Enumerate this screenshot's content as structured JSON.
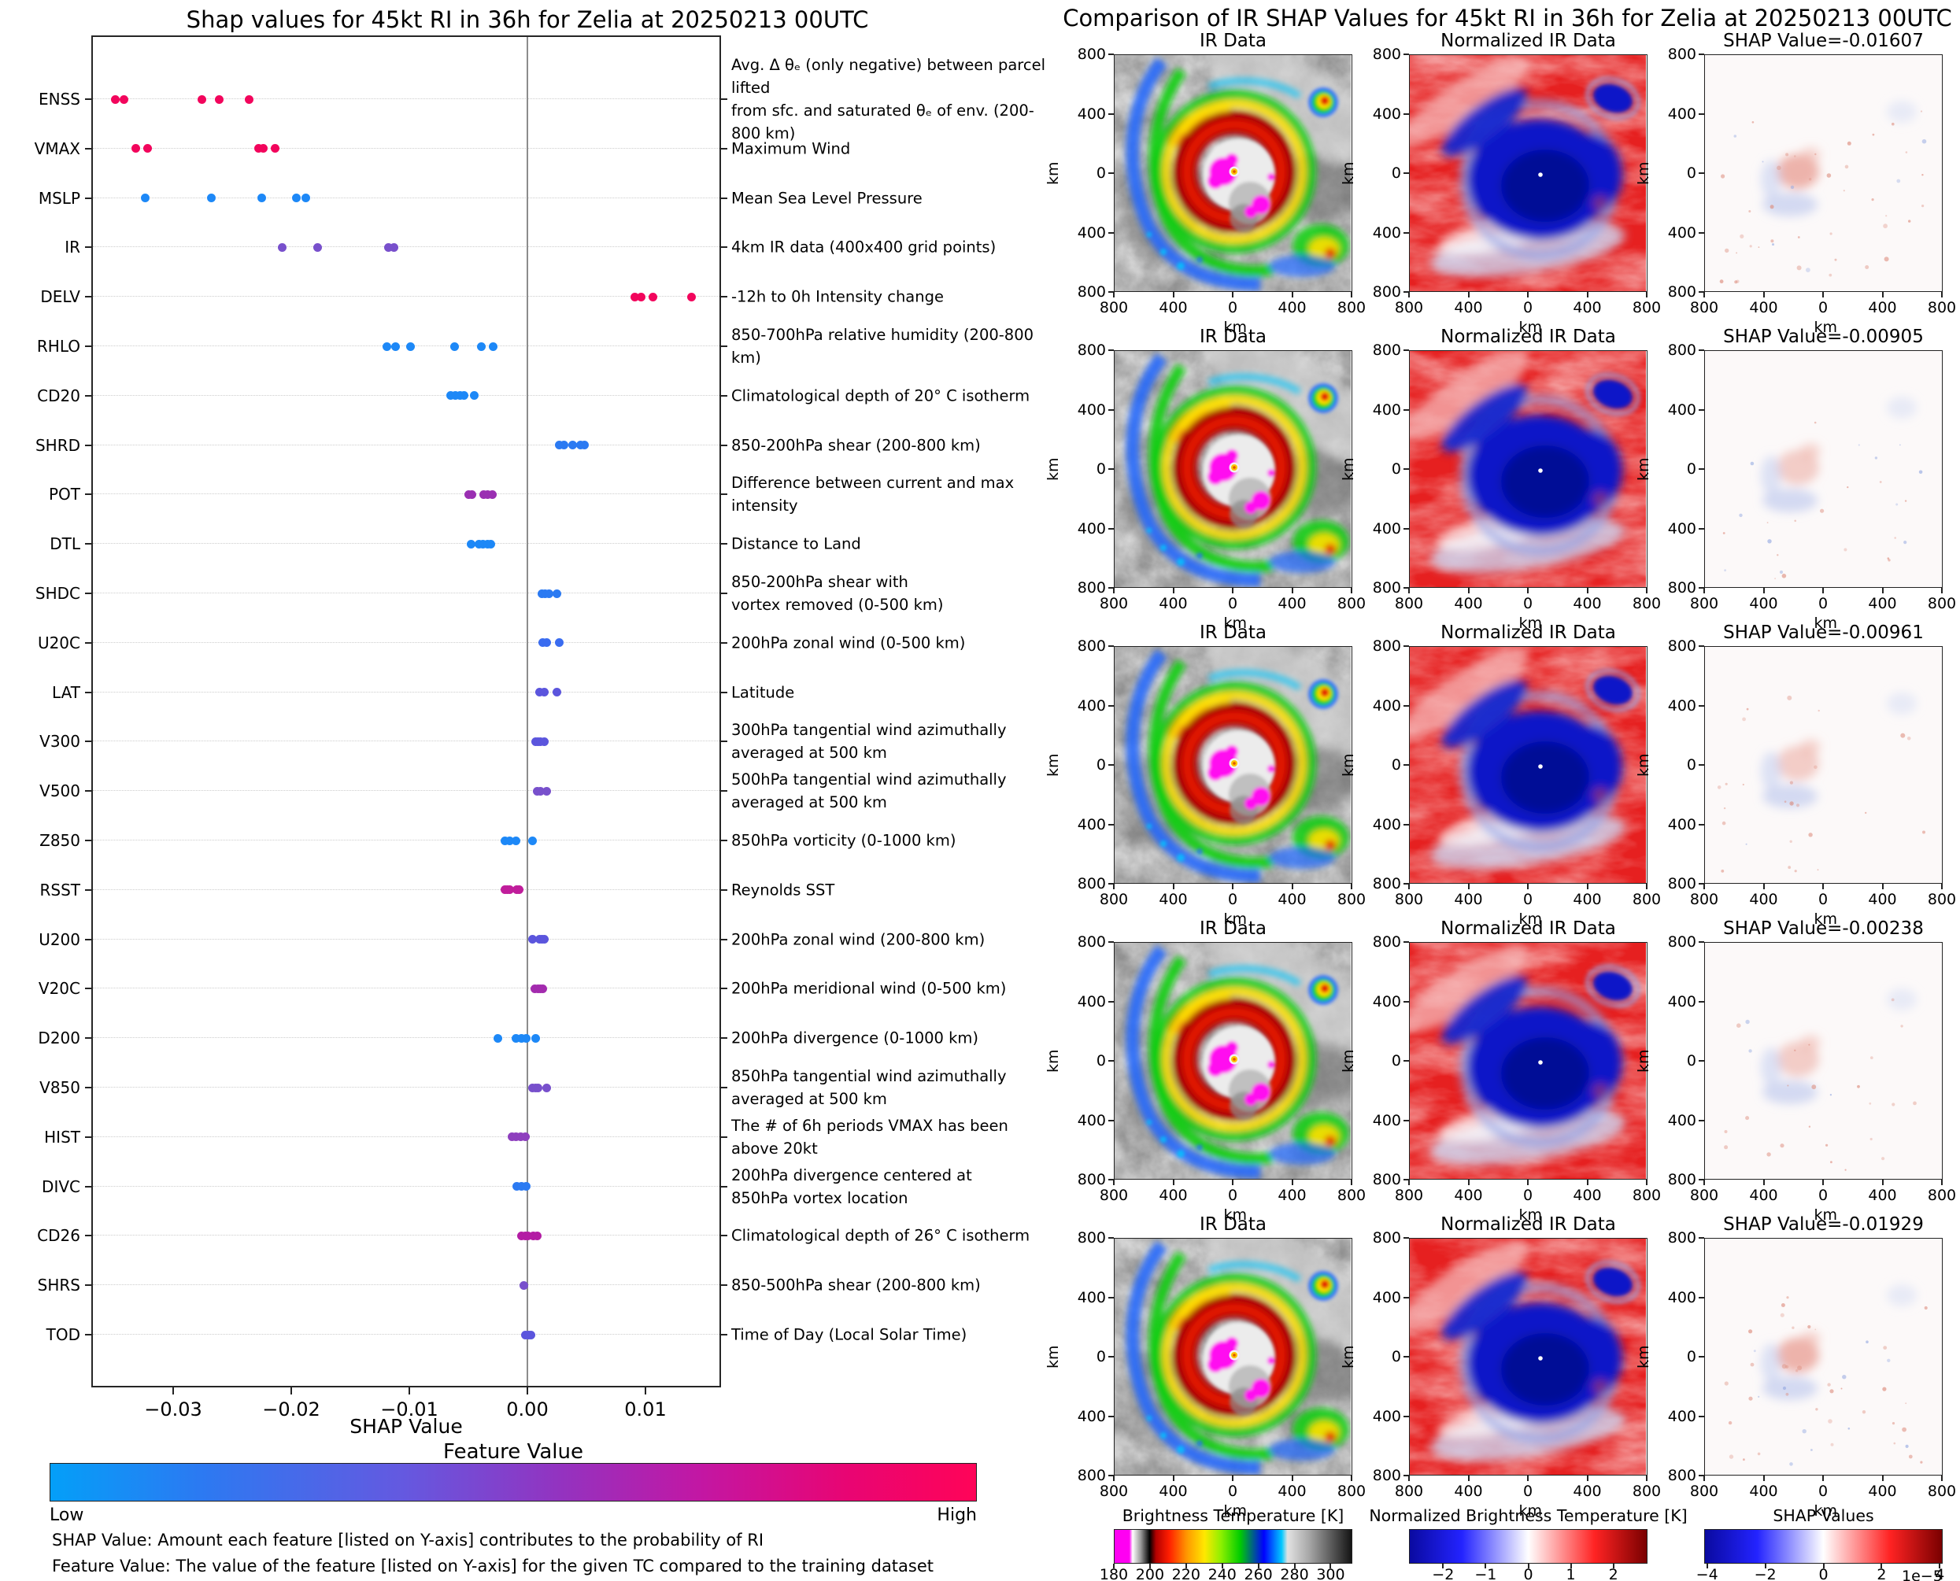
{
  "chart_data": [
    {
      "type": "scatter",
      "subtype": "shap-beeswarm",
      "title": "Shap values for 45kt RI in 36h for Zelia at 20250213 00UTC",
      "xlabel": "SHAP Value",
      "xlim": [
        -0.037,
        0.0165
      ],
      "x_ticks": [
        "−0.03",
        "−0.02",
        "−0.01",
        "0.00",
        "0.01"
      ],
      "x_tick_values": [
        -0.03,
        -0.02,
        -0.01,
        0.0,
        0.01
      ],
      "grid": true,
      "colorbar": {
        "title": "Feature Value",
        "low_label": "Low",
        "high_label": "High",
        "left_color": "#049ff8",
        "right_color": "#ff0458"
      },
      "footnotes": [
        "SHAP Value: Amount each feature [listed on Y-axis] contributes to the probability of RI",
        "Feature Value: The value of the feature [listed on Y-axis] for the given TC compared to the training dataset"
      ],
      "features": [
        {
          "name": "ENSS",
          "desc": "Avg. Δ θₑ (only negative) between parcel lifted\nfrom sfc. and saturated θₑ of env. (200-800 km)",
          "color": "#f2055c",
          "values": [
            -0.0349,
            -0.0342,
            -0.0276,
            -0.0261,
            -0.0236
          ]
        },
        {
          "name": "VMAX",
          "desc": "Maximum Wind",
          "color": "#f2055c",
          "values": [
            -0.0332,
            -0.0322,
            -0.0228,
            -0.0224,
            -0.0214
          ]
        },
        {
          "name": "MSLP",
          "desc": "Mean Sea Level Pressure",
          "color": "#1d88f7",
          "values": [
            -0.0324,
            -0.0268,
            -0.0225,
            -0.0196,
            -0.0188
          ]
        },
        {
          "name": "IR",
          "desc": "4km IR data (400x400 grid points)",
          "color": "#7850cc",
          "values": [
            -0.0208,
            -0.0178,
            -0.0118,
            -0.0113
          ]
        },
        {
          "name": "DELV",
          "desc": "-12h to 0h Intensity change",
          "color": "#f2055c",
          "values": [
            0.0091,
            0.0096,
            0.0106,
            0.0139
          ]
        },
        {
          "name": "RHLO",
          "desc": "850-700hPa relative humidity (200-800 km)",
          "color": "#1d88f7",
          "values": [
            -0.0119,
            -0.0112,
            -0.0099,
            -0.0062,
            -0.0039,
            -0.0029
          ]
        },
        {
          "name": "CD20",
          "desc": "Climatological depth of 20° C isotherm",
          "color": "#1d88f7",
          "values": [
            -0.0065,
            -0.0061,
            -0.0057,
            -0.0054,
            -0.0045
          ]
        },
        {
          "name": "SHRD",
          "desc": "850-200hPa shear (200-800 km)",
          "color": "#2b7af2",
          "values": [
            0.0027,
            0.0031,
            0.0038,
            0.0045,
            0.0048
          ]
        },
        {
          "name": "POT",
          "desc": "Difference between current and max intensity",
          "color": "#9a2fb2",
          "values": [
            -0.005,
            -0.0047,
            -0.0037,
            -0.0034,
            -0.003
          ]
        },
        {
          "name": "DTL",
          "desc": "Distance to Land",
          "color": "#1d88f7",
          "values": [
            -0.0048,
            -0.0041,
            -0.0038,
            -0.0034,
            -0.0031
          ]
        },
        {
          "name": "SHDC",
          "desc": "850-200hPa shear with\nvortex removed (0-500 km)",
          "color": "#2b7af2",
          "values": [
            0.0012,
            0.0015,
            0.0018,
            0.0025
          ]
        },
        {
          "name": "U20C",
          "desc": "200hPa zonal wind (0-500 km)",
          "color": "#3a6cf0",
          "values": [
            0.0013,
            0.0016,
            0.0027
          ]
        },
        {
          "name": "LAT",
          "desc": "Latitude",
          "color": "#5b55dd",
          "values": [
            0.001,
            0.0014,
            0.0025
          ]
        },
        {
          "name": "V300",
          "desc": "300hPa tangential wind azimuthally\naveraged at 500 km",
          "color": "#5b55dd",
          "values": [
            0.0007,
            0.0009,
            0.0011,
            0.0014
          ]
        },
        {
          "name": "V500",
          "desc": "500hPa tangential wind azimuthally\naveraged at 500 km",
          "color": "#7850cc",
          "values": [
            0.0008,
            0.0011,
            0.0016
          ]
        },
        {
          "name": "Z850",
          "desc": "850hPa vorticity (0-1000 km)",
          "color": "#1d88f7",
          "values": [
            -0.0019,
            -0.0015,
            -0.001,
            0.0004
          ]
        },
        {
          "name": "RSST",
          "desc": "Reynolds SST",
          "color": "#c01d9b",
          "values": [
            -0.0019,
            -0.0017,
            -0.0015,
            -0.0009,
            -0.0007
          ]
        },
        {
          "name": "U200",
          "desc": "200hPa zonal wind (200-800 km)",
          "color": "#5b55dd",
          "values": [
            0.0004,
            0.001,
            0.0012,
            0.0014
          ]
        },
        {
          "name": "V20C",
          "desc": "200hPa meridional wind (0-500 km)",
          "color": "#a32bae",
          "values": [
            0.0006,
            0.0009,
            0.0011,
            0.0013
          ]
        },
        {
          "name": "D200",
          "desc": "200hPa divergence (0-1000 km)",
          "color": "#1d88f7",
          "values": [
            -0.0025,
            -0.001,
            -0.0005,
            -0.0001,
            0.0007
          ]
        },
        {
          "name": "V850",
          "desc": "850hPa tangential wind azimuthally\naveraged at 500 km",
          "color": "#7850cc",
          "values": [
            0.0004,
            0.0007,
            0.0009,
            0.0016
          ]
        },
        {
          "name": "HIST",
          "desc": "The # of 6h periods VMAX has been above 20kt",
          "color": "#8e3fbe",
          "values": [
            -0.0013,
            -0.001,
            -0.0006,
            -0.0002
          ]
        },
        {
          "name": "DIVC",
          "desc": "200hPa divergence centered at\n850hPa vortex location",
          "color": "#2b7af2",
          "values": [
            -0.0009,
            -0.0005,
            -0.0001
          ]
        },
        {
          "name": "CD26",
          "desc": "Climatological depth of 26° C isotherm",
          "color": "#b31da4",
          "values": [
            -0.0005,
            -0.0002,
            0.0,
            0.0005,
            0.0008
          ]
        },
        {
          "name": "SHRS",
          "desc": "850-500hPa shear (200-800 km)",
          "color": "#7850cc",
          "values": [
            -0.0003
          ]
        },
        {
          "name": "TOD",
          "desc": "Time of Day (Local Solar Time)",
          "color": "#5b55dd",
          "values": [
            -0.0002,
            0.0001,
            0.0003
          ]
        }
      ]
    },
    {
      "type": "heatmap",
      "subtype": "ir-shap-panel-grid",
      "title": "Comparison of IR SHAP Values for 45kt RI in 36h for Zelia at 20250213 00UTC",
      "col_titles": [
        "IR Data",
        "Normalized IR Data"
      ],
      "rows": [
        {
          "shap_title": "SHAP Value=-0.01607",
          "shap_value": -0.01607
        },
        {
          "shap_title": "SHAP Value=-0.00905",
          "shap_value": -0.00905
        },
        {
          "shap_title": "SHAP Value=-0.00961",
          "shap_value": -0.00961
        },
        {
          "shap_title": "SHAP Value=-0.00238",
          "shap_value": -0.00238
        },
        {
          "shap_title": "SHAP Value=-0.01929",
          "shap_value": -0.01929
        }
      ],
      "axis_ticks": [
        "800",
        "400",
        "0",
        "400",
        "800"
      ],
      "axis_unit": "km",
      "colorbars": [
        {
          "title": "Brightness Temperature [K]",
          "ticks": [
            "180",
            "200",
            "220",
            "240",
            "260",
            "280",
            "300"
          ],
          "tick_values": [
            180,
            200,
            220,
            240,
            260,
            280,
            300
          ],
          "range": [
            180,
            312
          ],
          "style": "ir"
        },
        {
          "title": "Normalized Brightness Temperature [K]",
          "ticks": [
            "−2",
            "−1",
            "0",
            "1",
            "2"
          ],
          "tick_values": [
            -2,
            -1,
            0,
            1,
            2
          ],
          "range": [
            -2.8,
            2.8
          ],
          "style": "seismic"
        },
        {
          "title": "SHAP Values",
          "ticks": [
            "−4",
            "−2",
            "0",
            "2",
            "4"
          ],
          "tick_values": [
            -4,
            -2,
            0,
            2,
            4
          ],
          "range": [
            -4.1,
            4.1
          ],
          "style": "seismic",
          "exponent": "1e−5"
        }
      ]
    }
  ]
}
